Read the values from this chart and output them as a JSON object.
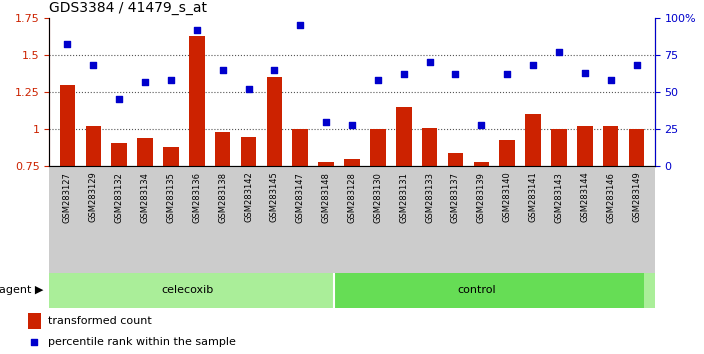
{
  "title": "GDS3384 / 41479_s_at",
  "samples": [
    "GSM283127",
    "GSM283129",
    "GSM283132",
    "GSM283134",
    "GSM283135",
    "GSM283136",
    "GSM283138",
    "GSM283142",
    "GSM283145",
    "GSM283147",
    "GSM283148",
    "GSM283128",
    "GSM283130",
    "GSM283131",
    "GSM283133",
    "GSM283137",
    "GSM283139",
    "GSM283140",
    "GSM283141",
    "GSM283143",
    "GSM283144",
    "GSM283146",
    "GSM283149"
  ],
  "bar_values": [
    1.3,
    1.02,
    0.91,
    0.94,
    0.88,
    1.63,
    0.98,
    0.95,
    1.35,
    1.0,
    0.78,
    0.8,
    1.0,
    1.15,
    1.01,
    0.84,
    0.78,
    0.93,
    1.1,
    1.0,
    1.02,
    1.02,
    1.0
  ],
  "dot_values": [
    82,
    68,
    45,
    57,
    58,
    92,
    65,
    52,
    65,
    95,
    30,
    28,
    58,
    62,
    70,
    62,
    28,
    62,
    68,
    77,
    63,
    58,
    68
  ],
  "celecoxib_count": 11,
  "control_count": 12,
  "ylim_left": [
    0.75,
    1.75
  ],
  "ylim_right": [
    0,
    100
  ],
  "yticks_left": [
    0.75,
    1.0,
    1.25,
    1.5,
    1.75
  ],
  "ytick_labels_left": [
    "0.75",
    "1",
    "1.25",
    "1.5",
    "1.75"
  ],
  "yticks_right": [
    0,
    25,
    50,
    75,
    100
  ],
  "ytick_labels_right": [
    "0",
    "25",
    "50",
    "75",
    "100%"
  ],
  "bar_color": "#cc2200",
  "dot_color": "#0000cc",
  "celecoxib_color": "#aaee99",
  "control_color": "#66dd55",
  "agent_label": "agent",
  "celecoxib_label": "celecoxib",
  "control_label": "control",
  "legend_bar_label": "transformed count",
  "legend_dot_label": "percentile rank within the sample",
  "background_plot": "#ffffff",
  "title_color": "#000000",
  "left_axis_color": "#cc2200",
  "right_axis_color": "#0000cc",
  "dotted_line_color": "#555555",
  "grid_lines": [
    1.0,
    1.25,
    1.5
  ]
}
